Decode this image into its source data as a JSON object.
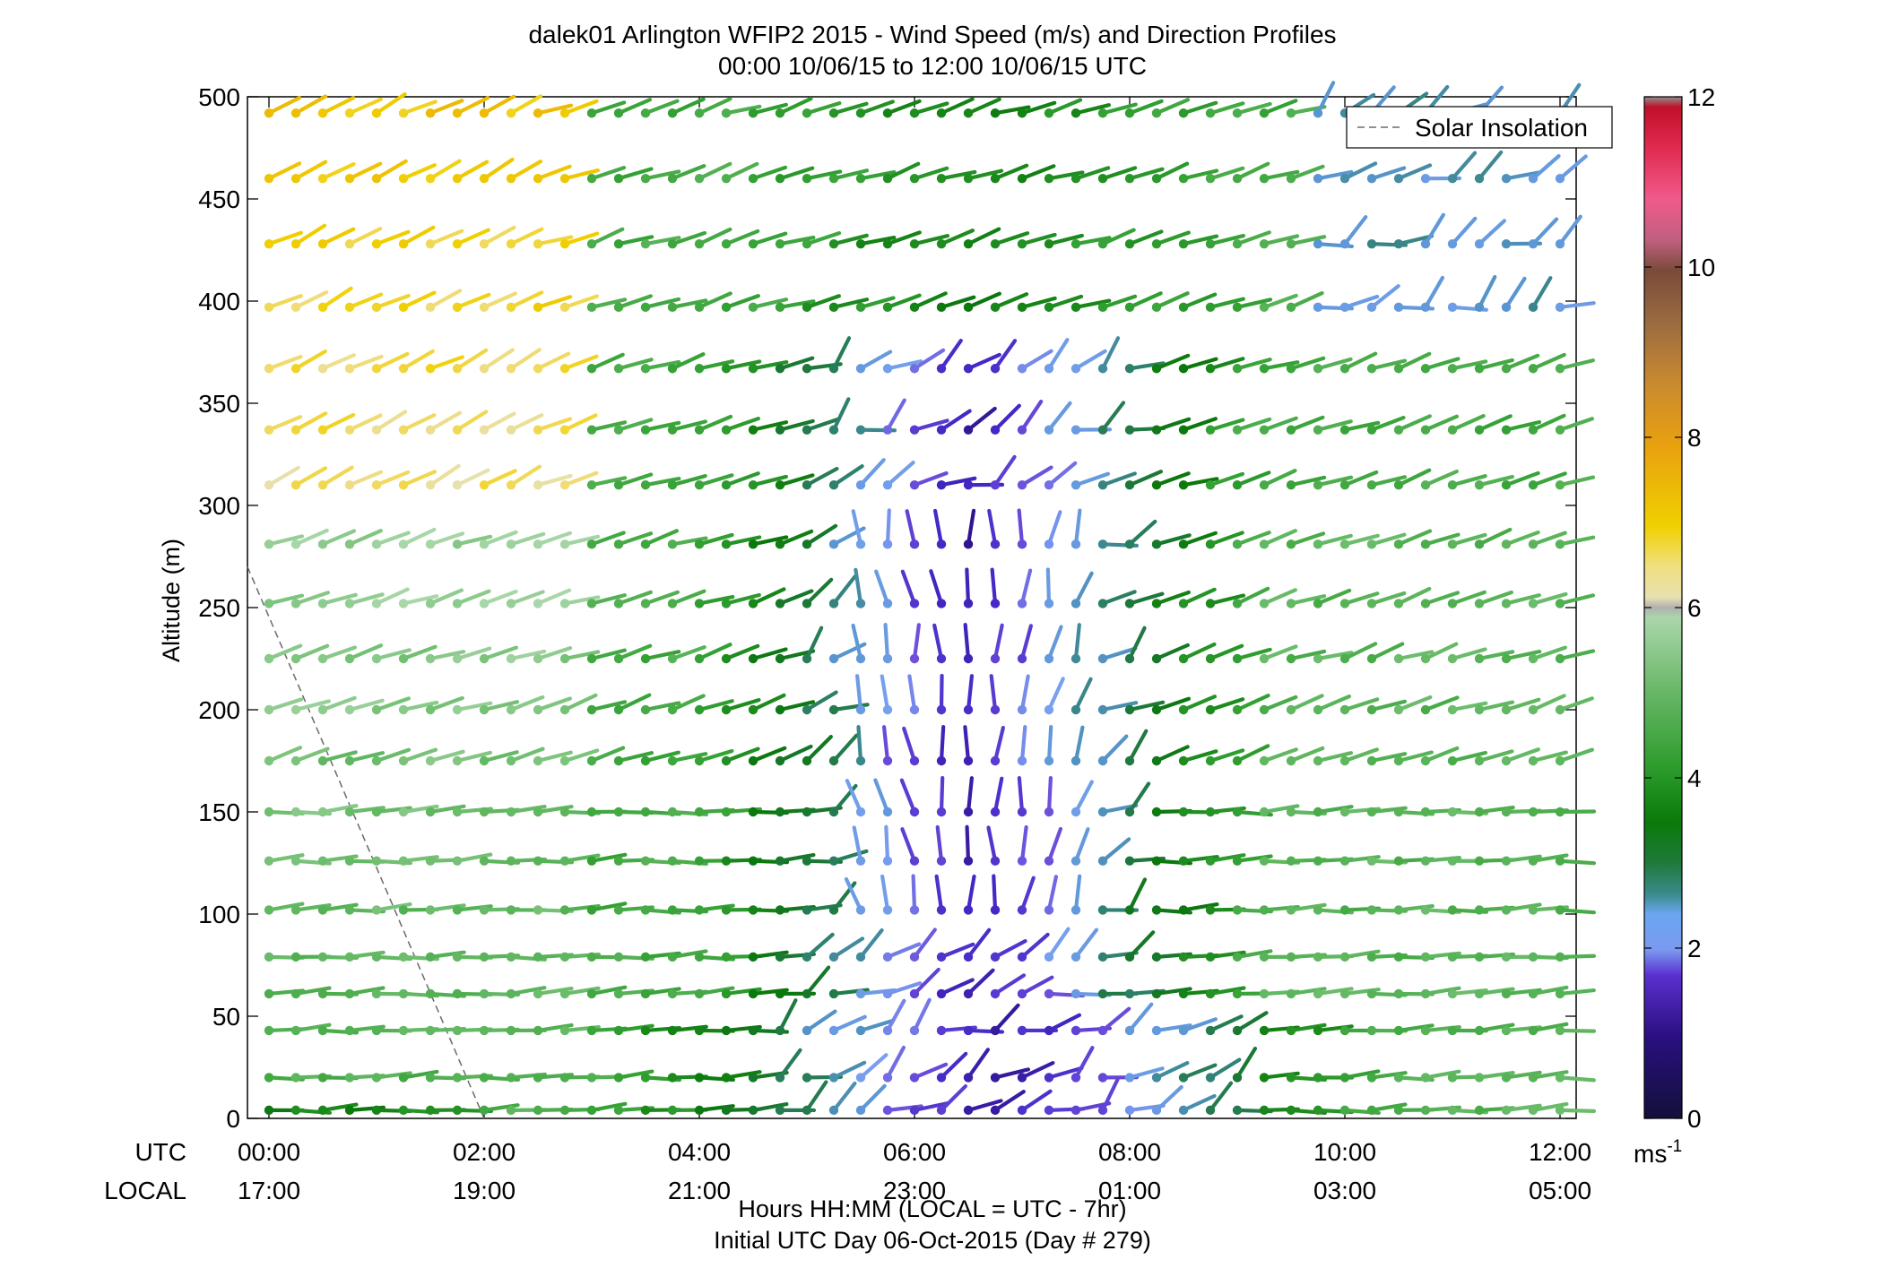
{
  "chart_data": {
    "type": "wind-barb-profile",
    "title": "dalek01 Arlington WFIP2 2015 - Wind Speed (m/s) and Direction Profiles",
    "subtitle": "00:00 10/06/15 to 12:00 10/06/15  UTC",
    "ylabel": "Altitude (m)",
    "ylim": [
      0,
      500
    ],
    "yticks": [
      "0",
      "50",
      "100",
      "150",
      "200",
      "250",
      "300",
      "350",
      "400",
      "450",
      "500"
    ],
    "xlim_hours": [
      -0.2,
      12.15
    ],
    "x_row_labels": {
      "utc": "UTC",
      "local": "LOCAL"
    },
    "xticks_utc": [
      "00:00",
      "02:00",
      "04:00",
      "06:00",
      "08:00",
      "10:00",
      "12:00"
    ],
    "xticks_local": [
      "17:00",
      "19:00",
      "21:00",
      "23:00",
      "01:00",
      "03:00",
      "05:00"
    ],
    "xlabel_line1": "Hours HH:MM  (LOCAL = UTC - 7hr)",
    "xlabel_line2": "Initial UTC Day 06-Oct-2015 (Day # 279)",
    "legend": [
      {
        "label": "Solar Insolation",
        "style": "dashed",
        "color": "#7a7a7a"
      }
    ],
    "colorbar": {
      "min": 0,
      "max": 12,
      "ticks": [
        "0",
        "2",
        "4",
        "6",
        "8",
        "10",
        "12"
      ],
      "units": "ms",
      "units_exp": "-1"
    },
    "solar_insolation_line": {
      "x_hours": [
        -0.2,
        2.0
      ],
      "y_alt": [
        270,
        0
      ]
    },
    "levels_m": [
      4,
      20,
      43,
      61,
      79,
      102,
      126,
      150,
      175,
      200,
      225,
      252,
      281,
      310,
      337,
      367,
      397,
      428,
      460,
      492
    ],
    "times_h": [
      0.0,
      0.25,
      0.5,
      0.75,
      1.0,
      1.25,
      1.5,
      1.75,
      2.0,
      2.25,
      2.5,
      2.75,
      3.0,
      3.25,
      3.5,
      3.75,
      4.0,
      4.25,
      4.5,
      4.75,
      5.0,
      5.25,
      5.5,
      5.75,
      6.0,
      6.25,
      6.5,
      6.75,
      7.0,
      7.25,
      7.5,
      7.75,
      8.0,
      8.25,
      8.5,
      8.75,
      9.0,
      9.25,
      9.5,
      9.75,
      10.0,
      10.25,
      10.5,
      10.75,
      11.0,
      11.25,
      11.5,
      11.75,
      12.0
    ],
    "notes_regime": "Speeds ~4-6.5 m/s with westerly flow in early hours and lower levels; weak (~0.5-2 m/s) variable winds around 05:00-09:00 mid-altitudes"
  }
}
